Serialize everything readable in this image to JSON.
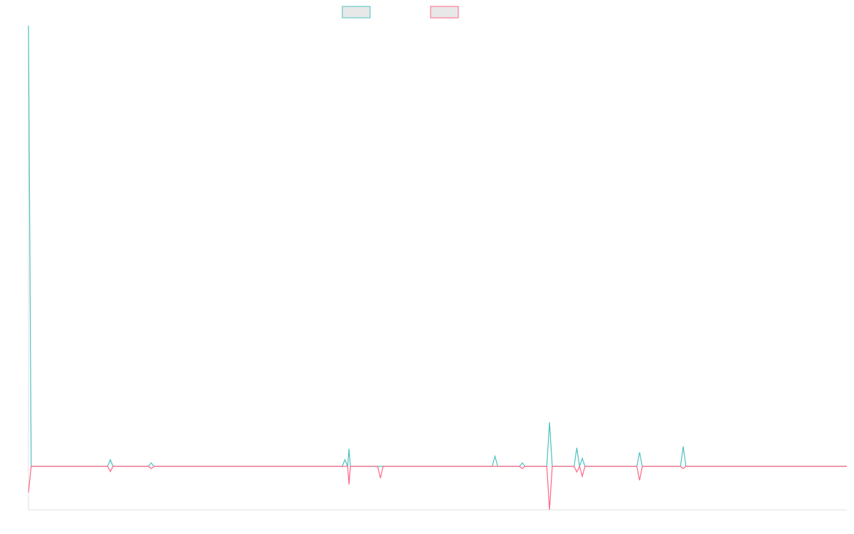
{
  "chart_data": {
    "type": "line",
    "title": "",
    "xlabel": "",
    "ylabel": "",
    "legend": {
      "position": "top-center"
    },
    "grid": false,
    "x_count": 301,
    "ylim": [
      -1,
      10
    ],
    "series": [
      {
        "color": "#4bc0c0",
        "fill": "#e8e8e8",
        "baseline": 0,
        "points": [
          {
            "x": 0,
            "y": 10.0
          },
          {
            "x": 1,
            "y": 0
          },
          {
            "x": 29,
            "y": 0
          },
          {
            "x": 30,
            "y": 0.15
          },
          {
            "x": 31,
            "y": 0
          },
          {
            "x": 44,
            "y": 0
          },
          {
            "x": 45,
            "y": 0.08
          },
          {
            "x": 46,
            "y": 0
          },
          {
            "x": 115,
            "y": 0
          },
          {
            "x": 116,
            "y": 0.15
          },
          {
            "x": 117,
            "y": 0
          },
          {
            "x": 117.5,
            "y": 0.4
          },
          {
            "x": 118,
            "y": 0
          },
          {
            "x": 170,
            "y": 0
          },
          {
            "x": 171,
            "y": 0.23
          },
          {
            "x": 172,
            "y": 0
          },
          {
            "x": 180,
            "y": 0
          },
          {
            "x": 181,
            "y": 0.08
          },
          {
            "x": 182,
            "y": 0
          },
          {
            "x": 190,
            "y": 0
          },
          {
            "x": 191,
            "y": 1.0
          },
          {
            "x": 192,
            "y": 0
          },
          {
            "x": 200,
            "y": 0
          },
          {
            "x": 201,
            "y": 0.42
          },
          {
            "x": 202,
            "y": 0
          },
          {
            "x": 203,
            "y": 0.18
          },
          {
            "x": 204,
            "y": 0
          },
          {
            "x": 223,
            "y": 0
          },
          {
            "x": 224,
            "y": 0.32
          },
          {
            "x": 225,
            "y": 0
          },
          {
            "x": 239,
            "y": 0
          },
          {
            "x": 240,
            "y": 0.45
          },
          {
            "x": 241,
            "y": 0
          },
          {
            "x": 300,
            "y": 0
          }
        ]
      },
      {
        "color": "#ff6384",
        "fill": "#e8e8e8",
        "baseline": 0,
        "points": [
          {
            "x": 0,
            "y": -0.6
          },
          {
            "x": 1,
            "y": 0
          },
          {
            "x": 29,
            "y": 0
          },
          {
            "x": 30,
            "y": -0.12
          },
          {
            "x": 31,
            "y": 0
          },
          {
            "x": 44,
            "y": 0
          },
          {
            "x": 45,
            "y": -0.05
          },
          {
            "x": 46,
            "y": 0
          },
          {
            "x": 117,
            "y": 0
          },
          {
            "x": 117.5,
            "y": -0.42
          },
          {
            "x": 118,
            "y": 0
          },
          {
            "x": 128,
            "y": 0
          },
          {
            "x": 129,
            "y": -0.27
          },
          {
            "x": 130,
            "y": 0
          },
          {
            "x": 180,
            "y": 0
          },
          {
            "x": 181,
            "y": -0.05
          },
          {
            "x": 182,
            "y": 0
          },
          {
            "x": 190,
            "y": 0
          },
          {
            "x": 191,
            "y": -1.0
          },
          {
            "x": 192,
            "y": 0
          },
          {
            "x": 200,
            "y": 0
          },
          {
            "x": 201,
            "y": -0.13
          },
          {
            "x": 202,
            "y": 0
          },
          {
            "x": 203,
            "y": -0.23
          },
          {
            "x": 204,
            "y": 0
          },
          {
            "x": 223,
            "y": 0
          },
          {
            "x": 224,
            "y": -0.32
          },
          {
            "x": 225,
            "y": 0
          },
          {
            "x": 239,
            "y": 0
          },
          {
            "x": 240,
            "y": -0.05
          },
          {
            "x": 241,
            "y": 0
          },
          {
            "x": 300,
            "y": 0
          }
        ]
      }
    ]
  }
}
